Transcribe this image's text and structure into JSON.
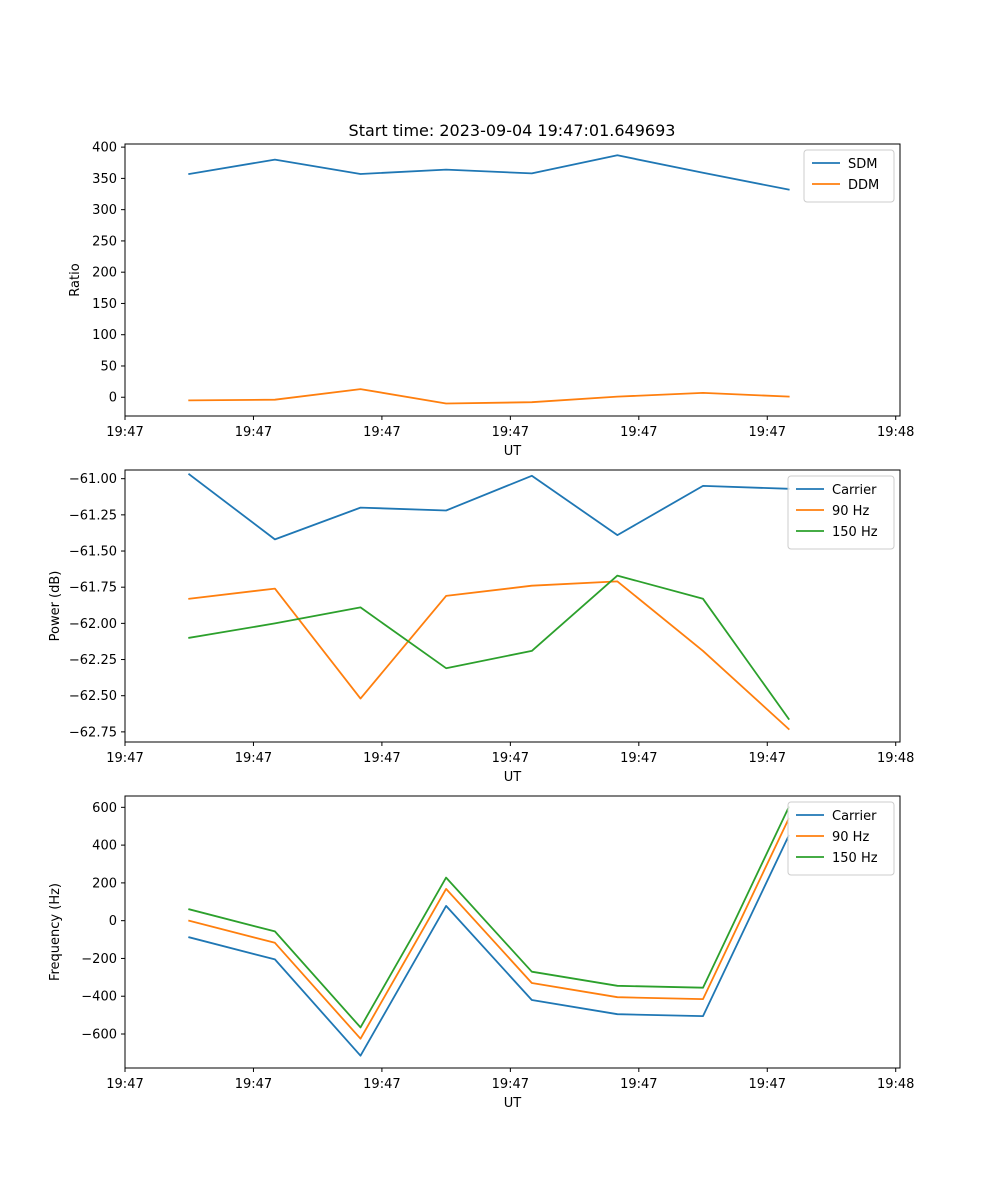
{
  "figure_title": "Start time: 2023-09-04 19:47:01.649693",
  "chart_data": [
    {
      "type": "line",
      "title": "Start time: 2023-09-04 19:47:01.649693",
      "xlabel": "UT",
      "ylabel": "Ratio",
      "xlim": [
        -0.75,
        8.3
      ],
      "ylim": [
        -30,
        405
      ],
      "x": [
        0,
        1,
        2,
        3,
        4,
        5,
        6,
        7
      ],
      "x_ticks": [
        -0.75,
        0.75,
        2.25,
        3.75,
        5.25,
        6.75,
        8.25
      ],
      "x_tick_labels": [
        "19:47",
        "19:47",
        "19:47",
        "19:47",
        "19:47",
        "19:47",
        "19:48"
      ],
      "y_ticks": [
        0,
        50,
        100,
        150,
        200,
        250,
        300,
        350,
        400
      ],
      "y_tick_labels": [
        "0",
        "50",
        "100",
        "150",
        "200",
        "250",
        "300",
        "350",
        "400"
      ],
      "legend_position": "top-right",
      "series": [
        {
          "name": "SDM",
          "color": "#1f77b4",
          "values": [
            357,
            380,
            357,
            364,
            358,
            387,
            359,
            332
          ]
        },
        {
          "name": "DDM",
          "color": "#ff7f0e",
          "values": [
            -5,
            -4,
            13,
            -10,
            -8,
            1,
            7,
            1
          ]
        }
      ]
    },
    {
      "type": "line",
      "title": "",
      "xlabel": "UT",
      "ylabel": "Power (dB)",
      "xlim": [
        -0.75,
        8.3
      ],
      "ylim": [
        -62.82,
        -60.94
      ],
      "x": [
        0,
        1,
        2,
        3,
        4,
        5,
        6,
        7
      ],
      "x_ticks": [
        -0.75,
        0.75,
        2.25,
        3.75,
        5.25,
        6.75,
        8.25
      ],
      "x_tick_labels": [
        "19:47",
        "19:47",
        "19:47",
        "19:47",
        "19:47",
        "19:47",
        "19:48"
      ],
      "y_ticks": [
        -61.0,
        -61.25,
        -61.5,
        -61.75,
        -62.0,
        -62.25,
        -62.5,
        -62.75
      ],
      "y_tick_labels": [
        "−61.00",
        "−61.25",
        "−61.50",
        "−61.75",
        "−62.00",
        "−62.25",
        "−62.50",
        "−62.75"
      ],
      "legend_position": "top-right",
      "series": [
        {
          "name": "Carrier",
          "color": "#1f77b4",
          "values": [
            -60.97,
            -61.42,
            -61.2,
            -61.22,
            -60.98,
            -61.39,
            -61.05,
            -61.07
          ]
        },
        {
          "name": "90 Hz",
          "color": "#ff7f0e",
          "values": [
            -61.83,
            -61.76,
            -62.52,
            -61.81,
            -61.74,
            -61.71,
            -62.19,
            -62.73
          ]
        },
        {
          "name": "150 Hz",
          "color": "#2ca02c",
          "values": [
            -62.1,
            -62.0,
            -61.89,
            -62.31,
            -62.19,
            -61.67,
            -61.83,
            -62.66
          ]
        }
      ]
    },
    {
      "type": "line",
      "title": "",
      "xlabel": "UT",
      "ylabel": "Frequency (Hz)",
      "xlim": [
        -0.75,
        8.3
      ],
      "ylim": [
        -780,
        660
      ],
      "x": [
        0,
        1,
        2,
        3,
        4,
        5,
        6,
        7
      ],
      "x_ticks": [
        -0.75,
        0.75,
        2.25,
        3.75,
        5.25,
        6.75,
        8.25
      ],
      "x_tick_labels": [
        "19:47",
        "19:47",
        "19:47",
        "19:47",
        "19:47",
        "19:47",
        "19:48"
      ],
      "y_ticks": [
        -600,
        -400,
        -200,
        0,
        200,
        400,
        600
      ],
      "y_tick_labels": [
        "−600",
        "−400",
        "−200",
        "0",
        "200",
        "400",
        "600"
      ],
      "legend_position": "top-right",
      "series": [
        {
          "name": "Carrier",
          "color": "#1f77b4",
          "values": [
            -88,
            -205,
            -715,
            78,
            -420,
            -495,
            -505,
            450
          ]
        },
        {
          "name": "90 Hz",
          "color": "#ff7f0e",
          "values": [
            0,
            -117,
            -625,
            168,
            -330,
            -405,
            -415,
            540
          ]
        },
        {
          "name": "150 Hz",
          "color": "#2ca02c",
          "values": [
            60,
            -57,
            -565,
            228,
            -270,
            -345,
            -355,
            600
          ]
        }
      ]
    }
  ]
}
